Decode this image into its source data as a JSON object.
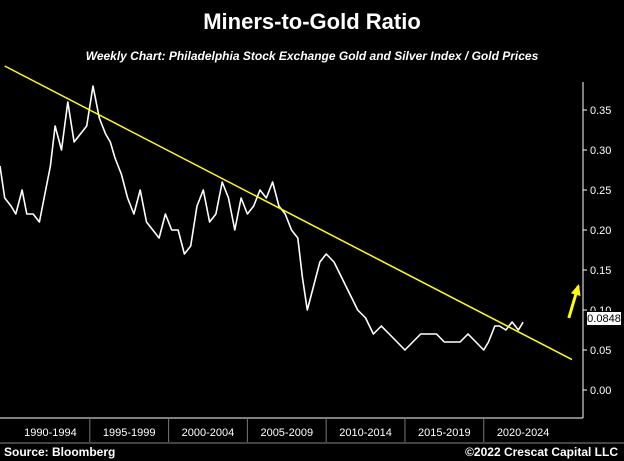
{
  "chart_data": {
    "type": "line",
    "title": "Miners-to-Gold Ratio",
    "subtitle": "Weekly Chart: Philadelphia Stock Exchange Gold and Silver Index / Gold Prices",
    "x_categories": [
      "1990-1994",
      "1995-1999",
      "2000-2004",
      "2005-2009",
      "2010-2014",
      "2015-2019",
      "2020-2024"
    ],
    "xlim": [
      1989.3,
      2026.3
    ],
    "y_ticks": [
      "0.35",
      "0.30",
      "0.25",
      "0.20",
      "0.15",
      "0.10",
      "0.05",
      "0.00"
    ],
    "ylim": [
      -0.035,
      0.385
    ],
    "last_value_label": "0.0848",
    "series": [
      {
        "color": "#ffffff",
        "x": [
          1989.3,
          1989.6,
          1990.0,
          1990.3,
          1990.7,
          1991.0,
          1991.4,
          1991.8,
          1992.1,
          1992.5,
          1992.8,
          1993.2,
          1993.6,
          1994.0,
          1994.4,
          1994.8,
          1995.2,
          1995.6,
          1996.0,
          1996.3,
          1996.6,
          1997.0,
          1997.4,
          1997.8,
          1998.2,
          1998.6,
          1999.0,
          1999.4,
          1999.8,
          2000.2,
          2000.6,
          2001.0,
          2001.4,
          2001.8,
          2002.2,
          2002.6,
          2003.0,
          2003.4,
          2003.8,
          2004.2,
          2004.6,
          2005.0,
          2005.4,
          2005.8,
          2006.2,
          2006.6,
          2007.0,
          2007.4,
          2007.8,
          2008.2,
          2008.5,
          2008.8,
          2009.2,
          2009.6,
          2010.0,
          2010.5,
          2011.0,
          2011.5,
          2012.0,
          2012.5,
          2013.0,
          2013.5,
          2014.0,
          2014.5,
          2015.0,
          2015.5,
          2016.0,
          2016.5,
          2017.0,
          2017.5,
          2018.0,
          2018.5,
          2019.0,
          2019.5,
          2020.0,
          2020.3,
          2020.7,
          2021.0,
          2021.4,
          2021.8,
          2022.2,
          2022.5
        ],
        "y": [
          0.28,
          0.24,
          0.23,
          0.22,
          0.25,
          0.22,
          0.22,
          0.21,
          0.24,
          0.28,
          0.33,
          0.3,
          0.36,
          0.31,
          0.32,
          0.33,
          0.38,
          0.34,
          0.32,
          0.31,
          0.29,
          0.27,
          0.24,
          0.22,
          0.25,
          0.21,
          0.2,
          0.19,
          0.22,
          0.2,
          0.2,
          0.17,
          0.18,
          0.23,
          0.25,
          0.21,
          0.22,
          0.26,
          0.24,
          0.2,
          0.24,
          0.22,
          0.23,
          0.25,
          0.24,
          0.26,
          0.23,
          0.22,
          0.2,
          0.19,
          0.14,
          0.1,
          0.13,
          0.16,
          0.17,
          0.16,
          0.14,
          0.12,
          0.1,
          0.09,
          0.07,
          0.08,
          0.07,
          0.06,
          0.05,
          0.06,
          0.07,
          0.07,
          0.07,
          0.06,
          0.06,
          0.06,
          0.07,
          0.06,
          0.05,
          0.06,
          0.08,
          0.08,
          0.075,
          0.085,
          0.075,
          0.0848
        ]
      },
      {
        "color": "#ffff00",
        "x": [
          1989.6,
          2025.6
        ],
        "y": [
          0.405,
          0.038
        ]
      }
    ],
    "annotations": [
      {
        "type": "arrow",
        "color": "#ffff00",
        "x0": 2025.4,
        "y0": 0.09,
        "x1": 2026.0,
        "y1": 0.13
      }
    ]
  },
  "footer": {
    "source": "Source: Bloomberg",
    "copyright": "©2022 Crescat Capital LLC"
  }
}
